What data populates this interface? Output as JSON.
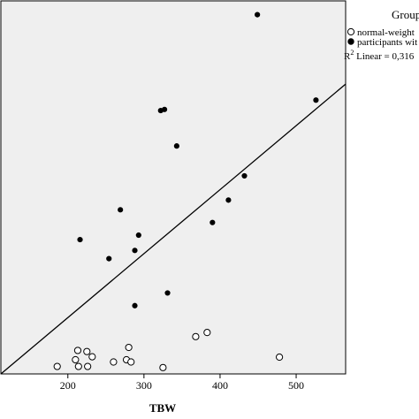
{
  "chart_data": {
    "type": "scatter",
    "xlabel": "TBW",
    "ylabel": "",
    "xlim": [
      112,
      565
    ],
    "x_ticks": [
      "200",
      "300",
      "400",
      "500"
    ],
    "y_ticks_visible": false,
    "grid": false,
    "background": "#efefef",
    "legend": {
      "title": "Group",
      "placement": "top-right",
      "entries": [
        {
          "label": "normal-weight",
          "marker": "open-circle"
        },
        {
          "label": "participants wit",
          "marker": "filled-circle"
        }
      ],
      "fit_label": "R² Linear = 0,316",
      "fit_label_superscript": "2",
      "fit_label_prefix": "R",
      "fit_label_suffix": " Linear = 0,316"
    },
    "y_units_note": "y axis has no printed ticks; y values are relative (0 = bottom of plot, 100 = top)",
    "ylim": [
      0,
      100
    ],
    "series": [
      {
        "name": "normal-weight",
        "marker": "open-circle",
        "points": [
          {
            "x": 186,
            "y": 2.0
          },
          {
            "x": 210,
            "y": 3.8
          },
          {
            "x": 213,
            "y": 6.3
          },
          {
            "x": 214,
            "y": 2.0
          },
          {
            "x": 225,
            "y": 6.0
          },
          {
            "x": 226,
            "y": 2.0
          },
          {
            "x": 232,
            "y": 4.6
          },
          {
            "x": 260,
            "y": 3.2
          },
          {
            "x": 277,
            "y": 3.8
          },
          {
            "x": 280,
            "y": 7.1
          },
          {
            "x": 283,
            "y": 3.2
          },
          {
            "x": 325,
            "y": 1.7
          },
          {
            "x": 368,
            "y": 10.0
          },
          {
            "x": 383,
            "y": 11.1
          },
          {
            "x": 478,
            "y": 4.5
          }
        ]
      },
      {
        "name": "participants wit",
        "marker": "filled-circle",
        "points": [
          {
            "x": 216,
            "y": 36.0
          },
          {
            "x": 254,
            "y": 30.9
          },
          {
            "x": 269,
            "y": 44.0
          },
          {
            "x": 288,
            "y": 18.3
          },
          {
            "x": 288,
            "y": 33.1
          },
          {
            "x": 293,
            "y": 37.2
          },
          {
            "x": 322,
            "y": 70.6
          },
          {
            "x": 327,
            "y": 70.9
          },
          {
            "x": 331,
            "y": 21.7
          },
          {
            "x": 343,
            "y": 61.1
          },
          {
            "x": 390,
            "y": 40.6
          },
          {
            "x": 411,
            "y": 46.6
          },
          {
            "x": 432,
            "y": 53.1
          },
          {
            "x": 449,
            "y": 96.3
          },
          {
            "x": 526,
            "y": 73.4
          }
        ]
      }
    ],
    "fit_line": {
      "type": "linear",
      "points": [
        {
          "x": 112,
          "y": 0
        },
        {
          "x": 565,
          "y": 77.7
        }
      ]
    }
  }
}
